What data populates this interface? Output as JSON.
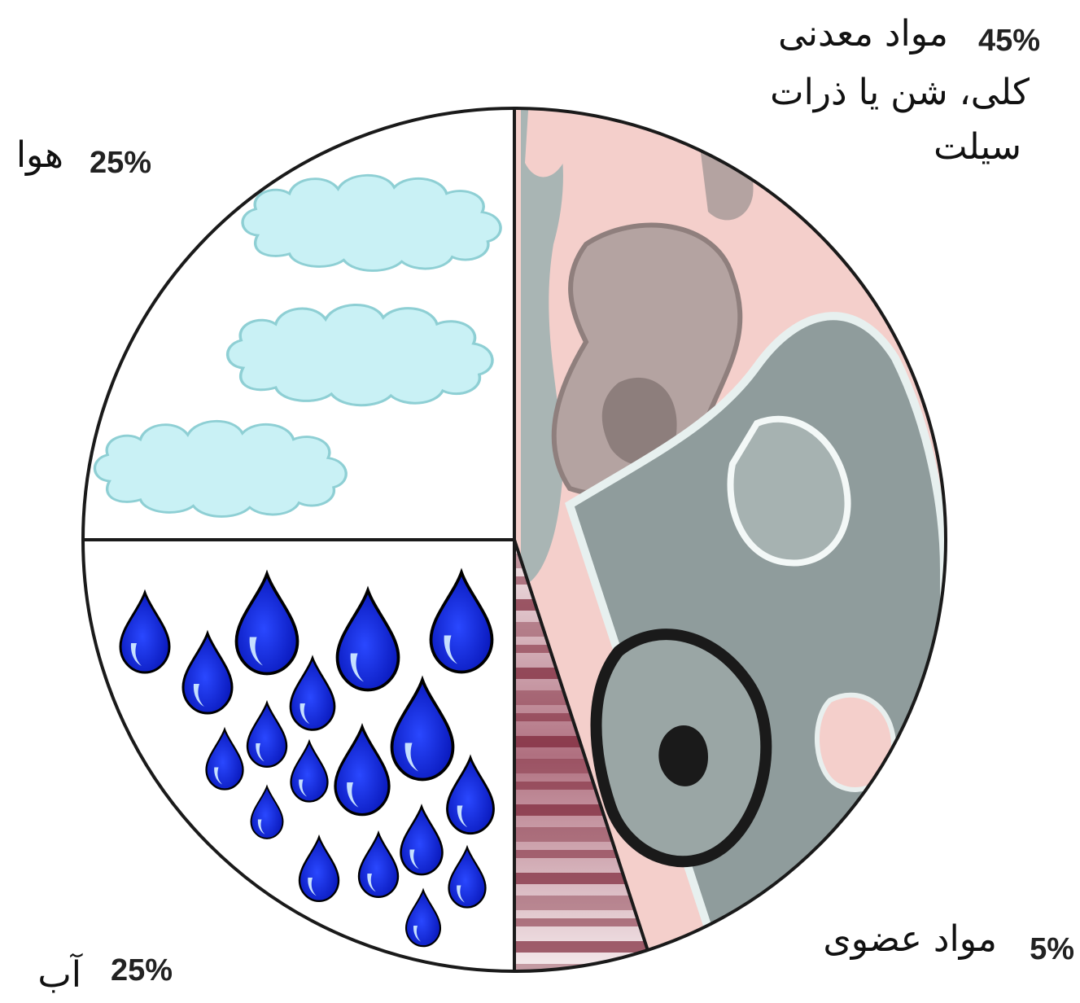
{
  "chart_data": {
    "type": "pie",
    "slices": [
      {
        "percent_label": "45%",
        "label_lines": [
          "مواد  معدنی",
          "کلی، شن یا ذرات",
          "سیلت"
        ],
        "value": 45,
        "texture": "mineral-rock"
      },
      {
        "percent_label": "5%",
        "label_lines": [
          "مواد عضوی"
        ],
        "value": 5,
        "texture": "organic-stripes"
      },
      {
        "percent_label": "25%",
        "label_lines": [
          "آب"
        ],
        "value": 25,
        "texture": "water-drops"
      },
      {
        "percent_label": "25%",
        "label_lines": [
          "هوا"
        ],
        "value": 25,
        "texture": "air-clouds"
      }
    ],
    "colors": {
      "mineral_pink": "#f4cfcb",
      "mineral_gray": "#8f9c9c",
      "mineral_dark": "#1a1a1a",
      "organic_maroon": "#7b2336",
      "drop_blue": "#0a1fd6",
      "cloud_fill": "#c9f1f5",
      "cloud_stroke": "#8ecfd4"
    }
  }
}
